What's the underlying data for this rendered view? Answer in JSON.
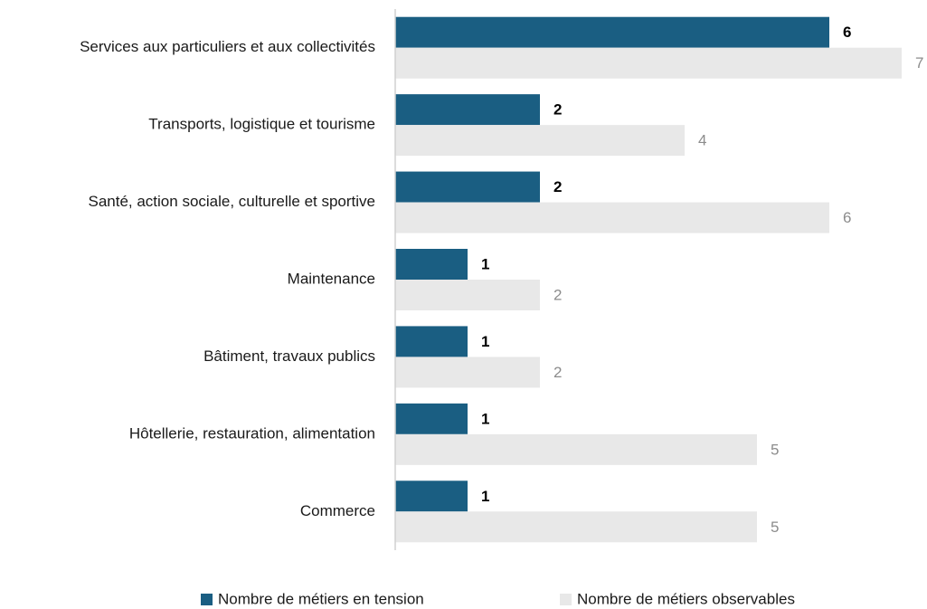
{
  "chart_data": {
    "type": "bar",
    "orientation": "horizontal",
    "categories": [
      "Services aux particuliers et aux collectivités",
      "Transports, logistique et tourisme",
      "Santé, action sociale, culturelle et sportive",
      "Maintenance",
      "Bâtiment, travaux publics",
      "Hôtellerie, restauration, alimentation",
      "Commerce"
    ],
    "series": [
      {
        "name": "Nombre de métiers en tension",
        "color": "#1a5e82",
        "values": [
          6,
          2,
          2,
          1,
          1,
          1,
          1
        ]
      },
      {
        "name": "Nombre de métiers observables",
        "color": "#e8e8e8",
        "values": [
          7,
          4,
          6,
          2,
          2,
          5,
          5
        ]
      }
    ],
    "xlim": [
      0,
      7
    ],
    "legend": "bottom"
  }
}
